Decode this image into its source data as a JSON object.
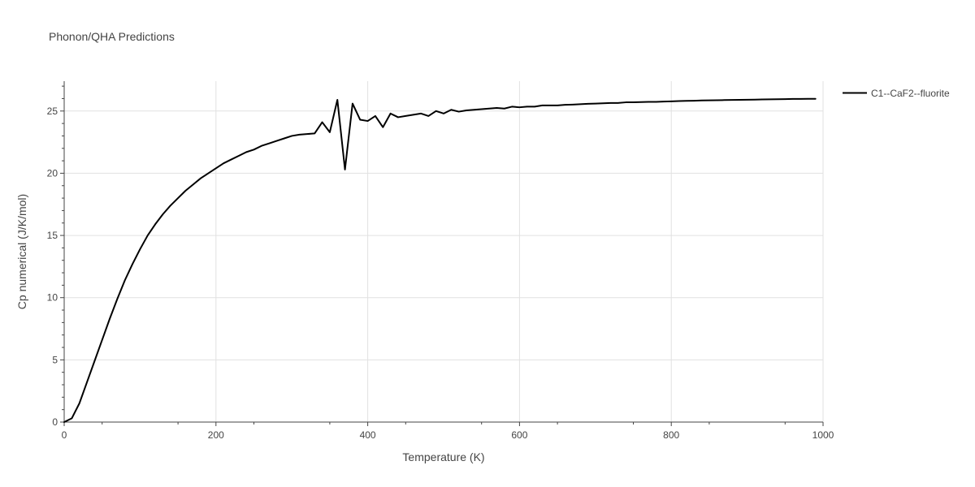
{
  "chart_data": {
    "type": "line",
    "title": "Phonon/QHA Predictions",
    "xlabel": "Temperature (K)",
    "ylabel": "Cp numerical (J/K/mol)",
    "xlim": [
      0,
      1000
    ],
    "ylim": [
      0,
      27.4
    ],
    "xticks": [
      0,
      200,
      400,
      600,
      800,
      1000
    ],
    "yticks": [
      0,
      5,
      10,
      15,
      20,
      25
    ],
    "grid": true,
    "legend_position": "top-right",
    "series": [
      {
        "name": "C1--CaF2--fluorite",
        "color": "#000000",
        "x": [
          0,
          10,
          20,
          30,
          40,
          50,
          60,
          70,
          80,
          90,
          100,
          110,
          120,
          130,
          140,
          150,
          160,
          170,
          180,
          190,
          200,
          210,
          220,
          230,
          240,
          250,
          260,
          270,
          280,
          290,
          300,
          310,
          320,
          330,
          340,
          350,
          360,
          370,
          380,
          390,
          400,
          410,
          420,
          430,
          440,
          450,
          460,
          470,
          480,
          490,
          500,
          510,
          520,
          530,
          540,
          550,
          560,
          570,
          580,
          590,
          600,
          610,
          620,
          630,
          640,
          650,
          660,
          670,
          680,
          690,
          700,
          710,
          720,
          730,
          740,
          750,
          760,
          770,
          780,
          790,
          800,
          810,
          820,
          830,
          840,
          850,
          860,
          870,
          880,
          890,
          900,
          910,
          920,
          930,
          940,
          950,
          960,
          970,
          980,
          990
        ],
        "y": [
          0.0,
          0.3,
          1.5,
          3.2,
          4.9,
          6.6,
          8.3,
          9.9,
          11.4,
          12.7,
          13.9,
          15.0,
          15.9,
          16.7,
          17.4,
          18.0,
          18.6,
          19.1,
          19.6,
          20.0,
          20.4,
          20.8,
          21.1,
          21.4,
          21.7,
          21.9,
          22.2,
          22.4,
          22.6,
          22.8,
          23.0,
          23.1,
          23.15,
          23.2,
          24.1,
          23.3,
          25.9,
          20.3,
          25.6,
          24.3,
          24.2,
          24.6,
          23.7,
          24.8,
          24.5,
          24.6,
          24.7,
          24.8,
          24.6,
          25.0,
          24.8,
          25.1,
          24.95,
          25.05,
          25.1,
          25.15,
          25.2,
          25.25,
          25.2,
          25.35,
          25.3,
          25.35,
          25.35,
          25.45,
          25.45,
          25.45,
          25.5,
          25.52,
          25.55,
          25.58,
          25.6,
          25.62,
          25.65,
          25.65,
          25.7,
          25.7,
          25.72,
          25.74,
          25.74,
          25.76,
          25.78,
          25.8,
          25.82,
          25.83,
          25.85,
          25.86,
          25.87,
          25.88,
          25.89,
          25.9,
          25.91,
          25.92,
          25.93,
          25.94,
          25.95,
          25.96,
          25.97,
          25.97,
          25.98,
          25.98
        ]
      }
    ]
  }
}
